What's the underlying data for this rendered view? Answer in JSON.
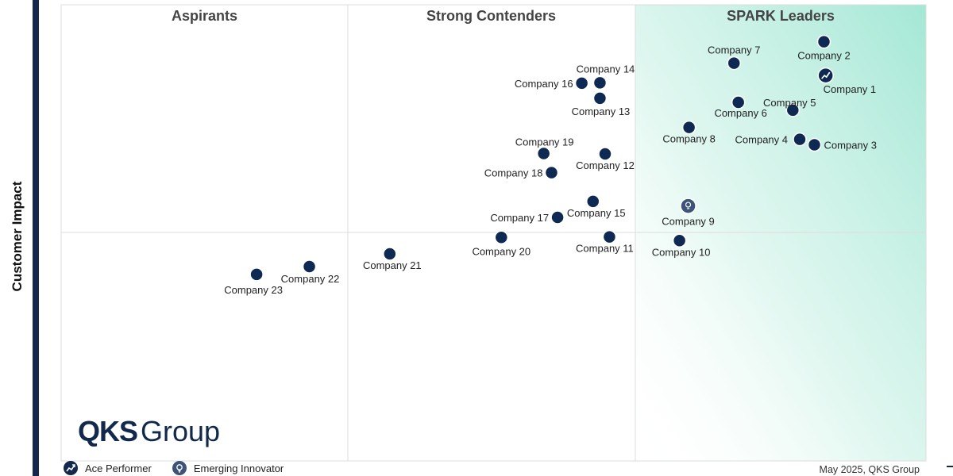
{
  "axis_labels": {
    "y": "Customer Impact"
  },
  "quadrant_titles": [
    "Aspirants",
    "Strong Contenders",
    "SPARK Leaders"
  ],
  "logo": {
    "main": "QKS",
    "sub": "Group"
  },
  "legend": [
    {
      "label": "Ace Performer",
      "icon": "trend-arrow-icon"
    },
    {
      "label": "Emerging Innovator",
      "icon": "lightbulb-icon"
    }
  ],
  "footer": "May 2025, QKS Group",
  "colors": {
    "marker": "#0f2a52",
    "leader_gradient": "#9fe6d3",
    "gridline": "#dcdcdc"
  },
  "chart_data": {
    "type": "scatter",
    "title": "",
    "ylabel": "Customer Impact",
    "xlabel": "",
    "xlim": [
      0,
      100
    ],
    "ylim": [
      0,
      100
    ],
    "grid": false,
    "quadrant_divisions": {
      "x": [
        33.3,
        66.7
      ],
      "y": 50
    },
    "points": [
      {
        "name": "Company 1",
        "x": 88.4,
        "y": 84.5,
        "badge": "ace"
      },
      {
        "name": "Company 2",
        "x": 88.2,
        "y": 91.9
      },
      {
        "name": "Company 3",
        "x": 87.1,
        "y": 69.3
      },
      {
        "name": "Company 4",
        "x": 85.4,
        "y": 70.5
      },
      {
        "name": "Company 5",
        "x": 84.6,
        "y": 76.9
      },
      {
        "name": "Company 6",
        "x": 78.3,
        "y": 78.6
      },
      {
        "name": "Company 7",
        "x": 77.8,
        "y": 87.2
      },
      {
        "name": "Company 8",
        "x": 72.6,
        "y": 73.1
      },
      {
        "name": "Company 9",
        "x": 72.5,
        "y": 55.9,
        "badge": "innovator"
      },
      {
        "name": "Company 10",
        "x": 71.5,
        "y": 48.3
      },
      {
        "name": "Company 11",
        "x": 63.4,
        "y": 49.1
      },
      {
        "name": "Company 12",
        "x": 62.9,
        "y": 67.3
      },
      {
        "name": "Company 13",
        "x": 62.3,
        "y": 79.5
      },
      {
        "name": "Company 14",
        "x": 62.3,
        "y": 82.9
      },
      {
        "name": "Company 15",
        "x": 61.5,
        "y": 56.9
      },
      {
        "name": "Company 16",
        "x": 60.2,
        "y": 82.8
      },
      {
        "name": "Company 17",
        "x": 57.4,
        "y": 53.4
      },
      {
        "name": "Company 18",
        "x": 56.7,
        "y": 63.2
      },
      {
        "name": "Company 19",
        "x": 55.8,
        "y": 67.4
      },
      {
        "name": "Company 20",
        "x": 50.9,
        "y": 49.0
      },
      {
        "name": "Company 21",
        "x": 38.0,
        "y": 45.4
      },
      {
        "name": "Company 22",
        "x": 28.7,
        "y": 42.6
      },
      {
        "name": "Company 23",
        "x": 22.6,
        "y": 40.9
      }
    ]
  }
}
